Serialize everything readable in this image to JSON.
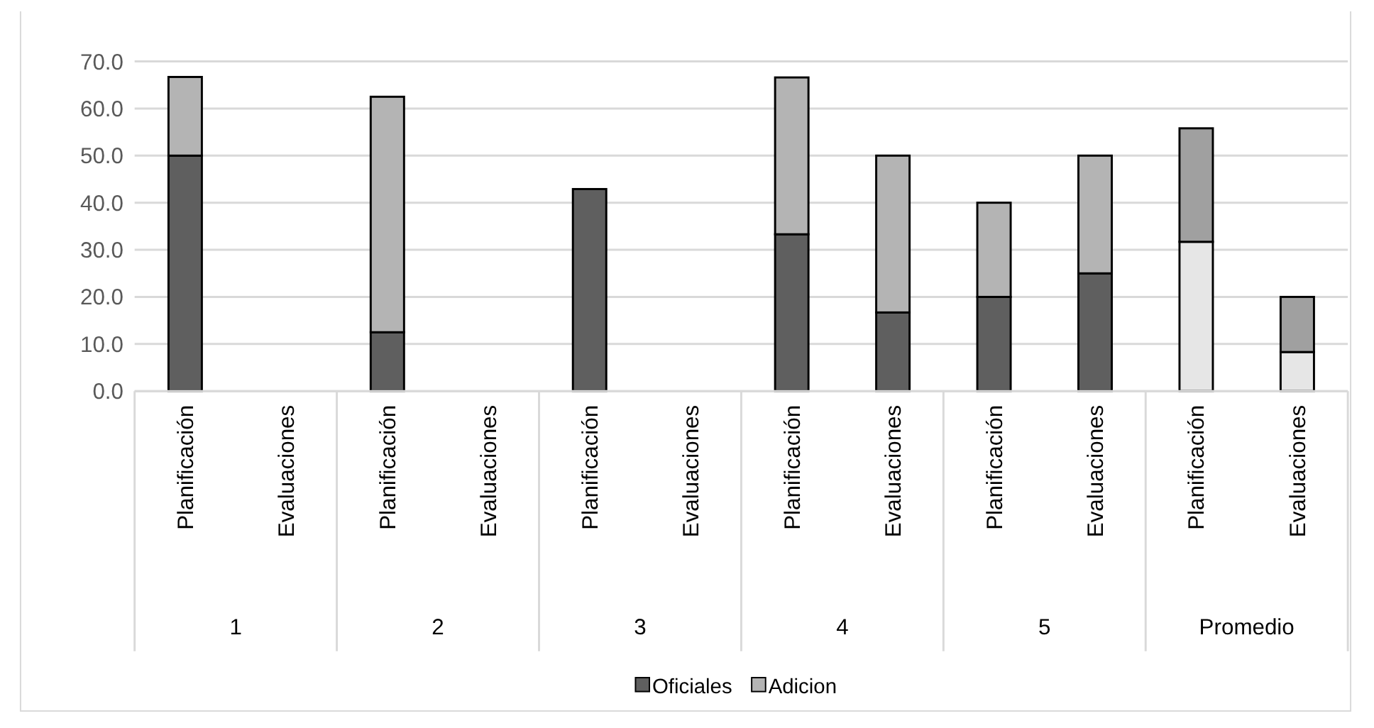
{
  "chart_data": {
    "type": "bar",
    "stacked": true,
    "categories": [
      "Planificación",
      "Evaluaciones",
      "Planificación",
      "Evaluaciones",
      "Planificación",
      "Evaluaciones",
      "Planificación",
      "Evaluaciones",
      "Planificación",
      "Evaluaciones",
      "Planificación",
      "Evaluaciones"
    ],
    "annotations": [
      "1",
      "2",
      "3",
      "4",
      "5",
      "Promedio"
    ],
    "series": [
      {
        "name": "Oficiales",
        "color": "#5f5f5f",
        "colors": [
          "#5f5f5f",
          null,
          "#5f5f5f",
          null,
          "#5f5f5f",
          null,
          "#5f5f5f",
          "#5f5f5f",
          "#5f5f5f",
          "#5f5f5f",
          "#e6e6e6",
          "#e6e6e6"
        ],
        "values": [
          50,
          null,
          12.5,
          null,
          42.9,
          null,
          33.3,
          16.7,
          20,
          25,
          31.7,
          8.3
        ]
      },
      {
        "name": "Adicion",
        "color": "#b4b4b4",
        "colors": [
          "#b4b4b4",
          null,
          "#b4b4b4",
          null,
          null,
          null,
          "#b4b4b4",
          "#b4b4b4",
          "#b4b4b4",
          "#b4b4b4",
          "#a0a0a0",
          "#a0a0a0"
        ],
        "values": [
          16.7,
          null,
          50,
          null,
          null,
          null,
          33.3,
          33.3,
          20,
          25,
          24.1,
          11.7
        ]
      }
    ],
    "ylim": [
      0,
      70
    ],
    "yticks": [
      {
        "value": 0,
        "label": "0.0"
      },
      {
        "value": 10,
        "label": "10.0"
      },
      {
        "value": 20,
        "label": "20.0"
      },
      {
        "value": 30,
        "label": "30.0"
      },
      {
        "value": 40,
        "label": "40.0"
      },
      {
        "value": 50,
        "label": "50.0"
      },
      {
        "value": 60,
        "label": "60.0"
      },
      {
        "value": 70,
        "label": "70.0"
      }
    ],
    "grid": "y",
    "legend": "bottom"
  }
}
